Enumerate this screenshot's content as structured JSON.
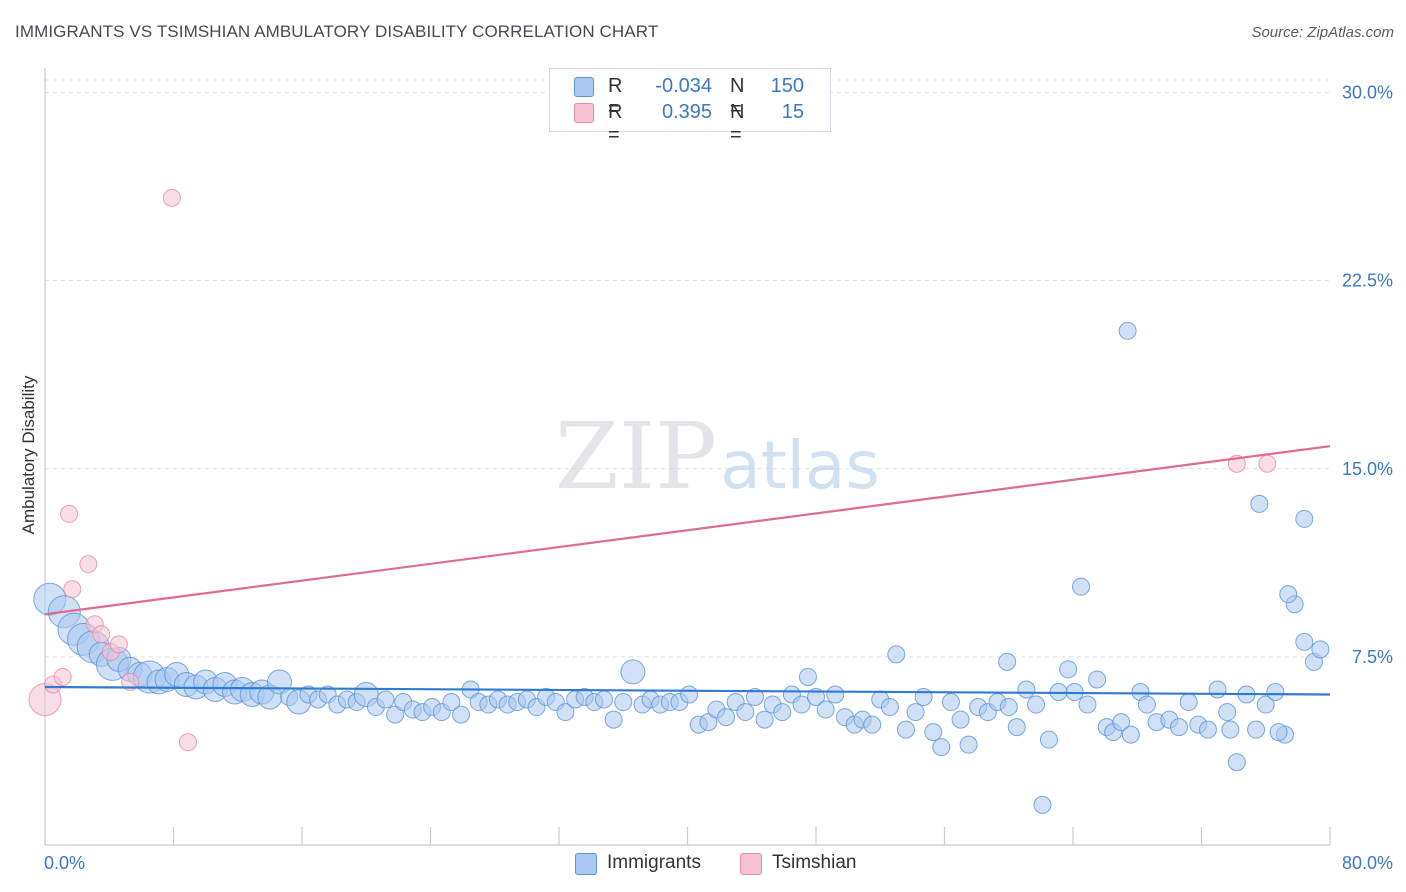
{
  "title": "IMMIGRANTS VS TSIMSHIAN AMBULATORY DISABILITY CORRELATION CHART",
  "source": "Source: ZipAtlas.com",
  "watermark": {
    "zip": "ZIP",
    "atlas": "atlas"
  },
  "colors": {
    "blue_fill": "#a9c9f0",
    "blue_stroke": "#5b93d6",
    "blue_line": "#2f7bd2",
    "pink_fill": "#f6c3d3",
    "pink_stroke": "#e58aa8",
    "pink_line": "#e06a93",
    "axis_text": "#3b78c4",
    "grid": "#dcdfe5"
  },
  "legend": {
    "rows": [
      {
        "r_label": "R =",
        "r_value": "-0.034",
        "n_label": "N =",
        "n_value": "150"
      },
      {
        "r_label": "R =",
        "r_value": "0.395",
        "n_label": "N =",
        "n_value": "15"
      }
    ]
  },
  "bottom_legend": {
    "immigrants": "Immigrants",
    "tsimshian": "Tsimshian"
  },
  "chart_data": {
    "type": "scatter",
    "title": "IMMIGRANTS VS TSIMSHIAN AMBULATORY DISABILITY CORRELATION CHART",
    "xlabel": "",
    "ylabel": "Ambulatory Disability",
    "xlim": [
      0,
      80
    ],
    "ylim": [
      0,
      30.5
    ],
    "x_tick_labels": [
      "0.0%",
      "80.0%"
    ],
    "y_ticks": [
      7.5,
      15.0,
      22.5,
      30.0
    ],
    "y_tick_labels": [
      "7.5%",
      "15.0%",
      "22.5%",
      "30.0%"
    ],
    "grid": true,
    "legend_position": "top-center",
    "series": [
      {
        "name": "Immigrants",
        "r": -0.034,
        "n": 150,
        "trendline": {
          "x": [
            0,
            80
          ],
          "y": [
            6.3,
            6.0
          ]
        },
        "points": [
          [
            0.3,
            9.8,
            3
          ],
          [
            1.2,
            9.3,
            3
          ],
          [
            1.8,
            8.6,
            3
          ],
          [
            2.4,
            8.2,
            3
          ],
          [
            3.0,
            7.9,
            3
          ],
          [
            3.5,
            7.6,
            2
          ],
          [
            4.2,
            7.2,
            3
          ],
          [
            4.6,
            7.4,
            2
          ],
          [
            5.3,
            7.0,
            2
          ],
          [
            5.9,
            6.8,
            2
          ],
          [
            6.5,
            6.7,
            3
          ],
          [
            7.1,
            6.5,
            2
          ],
          [
            7.6,
            6.6,
            2
          ],
          [
            8.2,
            6.8,
            2
          ],
          [
            8.8,
            6.4,
            2
          ],
          [
            9.4,
            6.3,
            2
          ],
          [
            10.0,
            6.5,
            2
          ],
          [
            10.6,
            6.2,
            2
          ],
          [
            11.2,
            6.4,
            2
          ],
          [
            11.8,
            6.1,
            2
          ],
          [
            12.3,
            6.2,
            2
          ],
          [
            12.9,
            6.0,
            2
          ],
          [
            13.5,
            6.1,
            2
          ],
          [
            14.0,
            5.9,
            2
          ],
          [
            14.6,
            6.5,
            2
          ],
          [
            15.2,
            5.9,
            1
          ],
          [
            15.8,
            5.7,
            2
          ],
          [
            16.4,
            6.0,
            1
          ],
          [
            17.0,
            5.8,
            1
          ],
          [
            17.6,
            6.0,
            1
          ],
          [
            18.2,
            5.6,
            1
          ],
          [
            18.8,
            5.8,
            1
          ],
          [
            19.4,
            5.7,
            1
          ],
          [
            20.0,
            6.0,
            2
          ],
          [
            20.6,
            5.5,
            1
          ],
          [
            21.2,
            5.8,
            1
          ],
          [
            21.8,
            5.2,
            1
          ],
          [
            22.3,
            5.7,
            1
          ],
          [
            22.9,
            5.4,
            1
          ],
          [
            23.5,
            5.3,
            1
          ],
          [
            24.1,
            5.5,
            1
          ],
          [
            24.7,
            5.3,
            1
          ],
          [
            25.3,
            5.7,
            1
          ],
          [
            25.9,
            5.2,
            1
          ],
          [
            26.5,
            6.2,
            1
          ],
          [
            27.0,
            5.7,
            1
          ],
          [
            27.6,
            5.6,
            1
          ],
          [
            28.2,
            5.8,
            1
          ],
          [
            28.8,
            5.6,
            1
          ],
          [
            29.4,
            5.7,
            1
          ],
          [
            30.0,
            5.8,
            1
          ],
          [
            30.6,
            5.5,
            1
          ],
          [
            31.2,
            5.9,
            1
          ],
          [
            31.8,
            5.7,
            1
          ],
          [
            32.4,
            5.3,
            1
          ],
          [
            33.0,
            5.8,
            1
          ],
          [
            33.6,
            5.9,
            1
          ],
          [
            34.2,
            5.7,
            1
          ],
          [
            34.8,
            5.8,
            1
          ],
          [
            35.4,
            5.0,
            1
          ],
          [
            36.0,
            5.7,
            1
          ],
          [
            36.6,
            6.9,
            2
          ],
          [
            37.2,
            5.6,
            1
          ],
          [
            37.7,
            5.8,
            1
          ],
          [
            38.3,
            5.6,
            1
          ],
          [
            38.9,
            5.7,
            1
          ],
          [
            39.5,
            5.7,
            1
          ],
          [
            40.1,
            6.0,
            1
          ],
          [
            40.7,
            4.8,
            1
          ],
          [
            41.3,
            4.9,
            1
          ],
          [
            41.8,
            5.4,
            1
          ],
          [
            42.4,
            5.1,
            1
          ],
          [
            43.0,
            5.7,
            1
          ],
          [
            43.6,
            5.3,
            1
          ],
          [
            44.2,
            5.9,
            1
          ],
          [
            44.8,
            5.0,
            1
          ],
          [
            45.3,
            5.6,
            1
          ],
          [
            45.9,
            5.3,
            1
          ],
          [
            46.5,
            6.0,
            1
          ],
          [
            47.1,
            5.6,
            1
          ],
          [
            47.5,
            6.7,
            1
          ],
          [
            48.0,
            5.9,
            1
          ],
          [
            48.6,
            5.4,
            1
          ],
          [
            49.2,
            6.0,
            1
          ],
          [
            49.8,
            5.1,
            1
          ],
          [
            50.4,
            4.8,
            1
          ],
          [
            50.9,
            5.0,
            1
          ],
          [
            51.5,
            4.8,
            1
          ],
          [
            52.0,
            5.8,
            1
          ],
          [
            52.6,
            5.5,
            1
          ],
          [
            53.0,
            7.6,
            1
          ],
          [
            53.6,
            4.6,
            1
          ],
          [
            54.2,
            5.3,
            1
          ],
          [
            54.7,
            5.9,
            1
          ],
          [
            55.3,
            4.5,
            1
          ],
          [
            55.8,
            3.9,
            1
          ],
          [
            56.4,
            5.7,
            1
          ],
          [
            57.0,
            5.0,
            1
          ],
          [
            57.5,
            4.0,
            1
          ],
          [
            58.1,
            5.5,
            1
          ],
          [
            58.7,
            5.3,
            1
          ],
          [
            59.3,
            5.7,
            1
          ],
          [
            59.9,
            7.3,
            1
          ],
          [
            60.5,
            4.7,
            1
          ],
          [
            61.1,
            6.2,
            1
          ],
          [
            61.7,
            5.6,
            1
          ],
          [
            62.1,
            1.6,
            1
          ],
          [
            62.5,
            4.2,
            1
          ],
          [
            63.1,
            6.1,
            1
          ],
          [
            63.7,
            7.0,
            1
          ],
          [
            64.1,
            6.1,
            1
          ],
          [
            64.5,
            10.3,
            1
          ],
          [
            64.9,
            5.6,
            1
          ],
          [
            65.5,
            6.6,
            1
          ],
          [
            66.1,
            4.7,
            1
          ],
          [
            66.5,
            4.5,
            1
          ],
          [
            67.0,
            4.9,
            1
          ],
          [
            67.6,
            4.4,
            1
          ],
          [
            68.2,
            6.1,
            1
          ],
          [
            68.6,
            5.6,
            1
          ],
          [
            69.2,
            4.9,
            1
          ],
          [
            70.0,
            5.0,
            1
          ],
          [
            70.6,
            4.7,
            1
          ],
          [
            71.2,
            5.7,
            1
          ],
          [
            71.8,
            4.8,
            1
          ],
          [
            72.4,
            4.6,
            1
          ],
          [
            73.0,
            6.2,
            1
          ],
          [
            73.6,
            5.3,
            1
          ],
          [
            74.2,
            3.3,
            1
          ],
          [
            74.8,
            6.0,
            1
          ],
          [
            75.4,
            4.6,
            1
          ],
          [
            76.0,
            5.6,
            1
          ],
          [
            76.6,
            6.1,
            1
          ],
          [
            77.2,
            4.4,
            1
          ],
          [
            77.8,
            9.6,
            1
          ],
          [
            78.4,
            8.1,
            1
          ],
          [
            79.0,
            7.3,
            1
          ],
          [
            79.4,
            7.8,
            1
          ],
          [
            67.4,
            20.5,
            1
          ],
          [
            75.6,
            13.6,
            1
          ],
          [
            78.4,
            13.0,
            1
          ],
          [
            77.4,
            10.0,
            1
          ],
          [
            76.8,
            4.5,
            1
          ],
          [
            73.8,
            4.6,
            1
          ],
          [
            60.0,
            5.5,
            1
          ]
        ]
      },
      {
        "name": "Tsimshian",
        "r": 0.395,
        "n": 15,
        "trendline": {
          "x": [
            0,
            80
          ],
          "y": [
            9.2,
            15.9
          ]
        },
        "points": [
          [
            0.0,
            5.8,
            3
          ],
          [
            0.5,
            6.4,
            1
          ],
          [
            1.1,
            6.7,
            1
          ],
          [
            1.5,
            13.2,
            1
          ],
          [
            1.7,
            10.2,
            1
          ],
          [
            2.7,
            11.2,
            1
          ],
          [
            3.1,
            8.8,
            1
          ],
          [
            3.5,
            8.4,
            1
          ],
          [
            4.1,
            7.7,
            1
          ],
          [
            4.6,
            8.0,
            1
          ],
          [
            5.3,
            6.5,
            1
          ],
          [
            7.9,
            25.8,
            1
          ],
          [
            8.9,
            4.1,
            1
          ],
          [
            74.2,
            15.2,
            1
          ],
          [
            76.1,
            15.2,
            1
          ]
        ]
      }
    ]
  }
}
